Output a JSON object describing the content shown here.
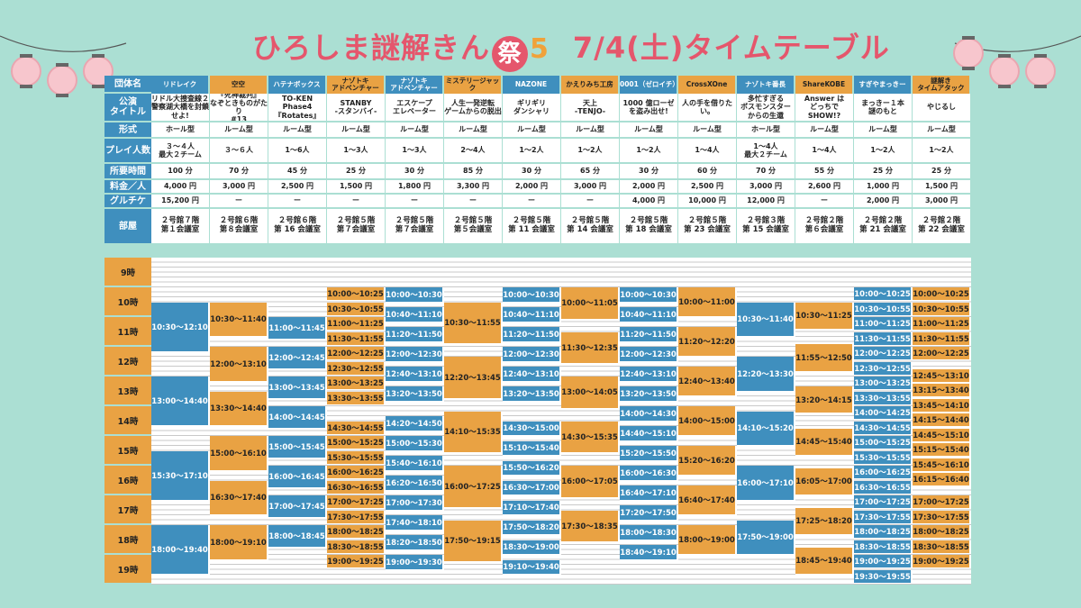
{
  "title": {
    "brand": "ひろしま謎解きん",
    "sakura": "祭",
    "num": "5",
    "date": "7/4(土)タイムテーブル"
  },
  "colors": {
    "blue": "#3f8fbe",
    "orange": "#e9a243",
    "bg": "#abdfd3",
    "title": "#e5566c"
  },
  "labels": [
    "団体名",
    "公演\nタイトル",
    "形式",
    "プレイ人数",
    "所要時間",
    "料金／人",
    "グルチケ",
    "部屋"
  ],
  "hours": [
    "9時",
    "10時",
    "11時",
    "12時",
    "13時",
    "14時",
    "15時",
    "16時",
    "17時",
    "18時",
    "19時"
  ],
  "columns": [
    {
      "org": "リドレイク",
      "title": "リドル大捜査線２\n警察湖大橋を封鎖せよ!",
      "format": "ホール型",
      "players": "３〜４人\n最大２チーム",
      "duration": "100 分",
      "price": "4,000 円",
      "group": "15,200 円",
      "room": "２号館７階\n第１会議室",
      "slots": [
        {
          "t": "10:30〜12:10",
          "c": "b"
        },
        {
          "t": "13:00〜14:40",
          "c": "b"
        },
        {
          "t": "15:30〜17:10",
          "c": "b"
        },
        {
          "t": "18:00〜19:40",
          "c": "b"
        }
      ]
    },
    {
      "org": "空空",
      "title": "『死神裁判』\nなぞときものがたり\n#13",
      "format": "ルーム型",
      "players": "３〜６人",
      "duration": "70 分",
      "price": "3,000 円",
      "group": "ー",
      "room": "２号館６階\n第８会議室",
      "slots": [
        {
          "t": "10:30〜11:40",
          "c": "o"
        },
        {
          "t": "12:00〜13:10",
          "c": "o"
        },
        {
          "t": "13:30〜14:40",
          "c": "o"
        },
        {
          "t": "15:00〜16:10",
          "c": "o"
        },
        {
          "t": "16:30〜17:40",
          "c": "o"
        },
        {
          "t": "18:00〜19:10",
          "c": "o"
        }
      ]
    },
    {
      "org": "ハテナボックス",
      "title": "TO-KEN Phase4\n『Rotates』",
      "format": "ルーム型",
      "players": "1〜6人",
      "duration": "45 分",
      "price": "2,500 円",
      "group": "ー",
      "room": "２号館６階\n第 16 会議室",
      "slots": [
        {
          "t": "11:00〜11:45",
          "c": "b"
        },
        {
          "t": "12:00〜12:45",
          "c": "b"
        },
        {
          "t": "13:00〜13:45",
          "c": "b"
        },
        {
          "t": "14:00〜14:45",
          "c": "b"
        },
        {
          "t": "15:00〜15:45",
          "c": "b"
        },
        {
          "t": "16:00〜16:45",
          "c": "b"
        },
        {
          "t": "17:00〜17:45",
          "c": "b"
        },
        {
          "t": "18:00〜18:45",
          "c": "b"
        }
      ]
    },
    {
      "org": "ナゾトキ\nアドベンチャー",
      "title": "STANBY\n-スタンバイ-",
      "format": "ルーム型",
      "players": "1〜3人",
      "duration": "25 分",
      "price": "1,500 円",
      "group": "ー",
      "room": "２号館５階\n第７会議室",
      "slots": [
        {
          "t": "10:00〜10:25",
          "c": "o"
        },
        {
          "t": "10:30〜10:55",
          "c": "o"
        },
        {
          "t": "11:00〜11:25",
          "c": "o"
        },
        {
          "t": "11:30〜11:55",
          "c": "o"
        },
        {
          "t": "12:00〜12:25",
          "c": "o"
        },
        {
          "t": "12:30〜12:55",
          "c": "o"
        },
        {
          "t": "13:00〜13:25",
          "c": "o"
        },
        {
          "t": "13:30〜13:55",
          "c": "o"
        },
        {
          "t": "14:30〜14:55",
          "c": "o"
        },
        {
          "t": "15:00〜15:25",
          "c": "o"
        },
        {
          "t": "15:30〜15:55",
          "c": "o"
        },
        {
          "t": "16:00〜16:25",
          "c": "o"
        },
        {
          "t": "16:30〜16:55",
          "c": "o"
        },
        {
          "t": "17:00〜17:25",
          "c": "o"
        },
        {
          "t": "17:30〜17:55",
          "c": "o"
        },
        {
          "t": "18:00〜18:25",
          "c": "o"
        },
        {
          "t": "18:30〜18:55",
          "c": "o"
        },
        {
          "t": "19:00〜19:25",
          "c": "o"
        }
      ]
    },
    {
      "org": "ナゾトキ\nアドベンチャー",
      "title": "エスケープ\nエレベーター",
      "format": "ルーム型",
      "players": "1〜3人",
      "duration": "30 分",
      "price": "1,800 円",
      "group": "ー",
      "room": "２号館５階\n第７会議室",
      "slots": [
        {
          "t": "10:00〜10:30",
          "c": "b"
        },
        {
          "t": "10:40〜11:10",
          "c": "b"
        },
        {
          "t": "11:20〜11:50",
          "c": "b"
        },
        {
          "t": "12:00〜12:30",
          "c": "b"
        },
        {
          "t": "12:40〜13:10",
          "c": "b"
        },
        {
          "t": "13:20〜13:50",
          "c": "b"
        },
        {
          "t": "14:20〜14:50",
          "c": "b"
        },
        {
          "t": "15:00〜15:30",
          "c": "b"
        },
        {
          "t": "15:40〜16:10",
          "c": "b"
        },
        {
          "t": "16:20〜16:50",
          "c": "b"
        },
        {
          "t": "17:00〜17:30",
          "c": "b"
        },
        {
          "t": "17:40〜18:10",
          "c": "b"
        },
        {
          "t": "18:20〜18:50",
          "c": "b"
        },
        {
          "t": "19:00〜19:30",
          "c": "b"
        }
      ]
    },
    {
      "org": "ミステリージャック",
      "title": "人生一発逆転\nゲームからの脱出",
      "format": "ルーム型",
      "players": "2〜4人",
      "duration": "85 分",
      "price": "3,300 円",
      "group": "ー",
      "room": "２号館５階\n第５会議室",
      "slots": [
        {
          "t": "10:30〜11:55",
          "c": "o"
        },
        {
          "t": "12:20〜13:45",
          "c": "o"
        },
        {
          "t": "14:10〜15:35",
          "c": "o"
        },
        {
          "t": "16:00〜17:25",
          "c": "o"
        },
        {
          "t": "17:50〜19:15",
          "c": "o"
        }
      ]
    },
    {
      "org": "NAZONE",
      "title": "ギリギリ\nダンシャリ",
      "format": "ルーム型",
      "players": "1〜2人",
      "duration": "30 分",
      "price": "2,000 円",
      "group": "ー",
      "room": "２号館５階\n第 11 会議室",
      "slots": [
        {
          "t": "10:00〜10:30",
          "c": "b"
        },
        {
          "t": "10:40〜11:10",
          "c": "b"
        },
        {
          "t": "11:20〜11:50",
          "c": "b"
        },
        {
          "t": "12:00〜12:30",
          "c": "b"
        },
        {
          "t": "12:40〜13:10",
          "c": "b"
        },
        {
          "t": "13:20〜13:50",
          "c": "b"
        },
        {
          "t": "14:30〜15:00",
          "c": "b"
        },
        {
          "t": "15:10〜15:40",
          "c": "b"
        },
        {
          "t": "15:50〜16:20",
          "c": "b"
        },
        {
          "t": "16:30〜17:00",
          "c": "b"
        },
        {
          "t": "17:10〜17:40",
          "c": "b"
        },
        {
          "t": "17:50〜18:20",
          "c": "b"
        },
        {
          "t": "18:30〜19:00",
          "c": "b"
        },
        {
          "t": "19:10〜19:40",
          "c": "b"
        }
      ]
    },
    {
      "org": "かえりみち工房",
      "title": "天上\n-TENJO-",
      "format": "ルーム型",
      "players": "1〜2人",
      "duration": "65 分",
      "price": "3,000 円",
      "group": "ー",
      "room": "２号館５階\n第 14 会議室",
      "slots": [
        {
          "t": "10:00〜11:05",
          "c": "o"
        },
        {
          "t": "11:30〜12:35",
          "c": "o"
        },
        {
          "t": "13:00〜14:05",
          "c": "o"
        },
        {
          "t": "14:30〜15:35",
          "c": "o"
        },
        {
          "t": "16:00〜17:05",
          "c": "o"
        },
        {
          "t": "17:30〜18:35",
          "c": "o"
        }
      ]
    },
    {
      "org": "0001（ゼロイチ）",
      "title": "1000 億ローゼ\nを盗み出せ!",
      "format": "ルーム型",
      "players": "1〜2人",
      "duration": "30 分",
      "price": "2,000 円",
      "group": "4,000 円",
      "room": "２号館５階\n第 18 会議室",
      "slots": [
        {
          "t": "10:00〜10:30",
          "c": "b"
        },
        {
          "t": "10:40〜11:10",
          "c": "b"
        },
        {
          "t": "11:20〜11:50",
          "c": "b"
        },
        {
          "t": "12:00〜12:30",
          "c": "b"
        },
        {
          "t": "12:40〜13:10",
          "c": "b"
        },
        {
          "t": "13:20〜13:50",
          "c": "b"
        },
        {
          "t": "14:00〜14:30",
          "c": "b"
        },
        {
          "t": "14:40〜15:10",
          "c": "b"
        },
        {
          "t": "15:20〜15:50",
          "c": "b"
        },
        {
          "t": "16:00〜16:30",
          "c": "b"
        },
        {
          "t": "16:40〜17:10",
          "c": "b"
        },
        {
          "t": "17:20〜17:50",
          "c": "b"
        },
        {
          "t": "18:00〜18:30",
          "c": "b"
        },
        {
          "t": "18:40〜19:10",
          "c": "b"
        }
      ]
    },
    {
      "org": "CrossXOne",
      "title": "人の手を借りたい。",
      "format": "ルーム型",
      "players": "1〜4人",
      "duration": "60 分",
      "price": "2,500 円",
      "group": "10,000 円",
      "room": "２号館５階\n第 23 会議室",
      "slots": [
        {
          "t": "10:00〜11:00",
          "c": "o"
        },
        {
          "t": "11:20〜12:20",
          "c": "o"
        },
        {
          "t": "12:40〜13:40",
          "c": "o"
        },
        {
          "t": "14:00〜15:00",
          "c": "o"
        },
        {
          "t": "15:20〜16:20",
          "c": "o"
        },
        {
          "t": "16:40〜17:40",
          "c": "o"
        },
        {
          "t": "18:00〜19:00",
          "c": "o"
        }
      ]
    },
    {
      "org": "ナゾトキ番長",
      "title": "多忙すぎる\nボスモンスター\nからの生還",
      "format": "ホール型",
      "players": "1〜4人\n最大２チーム",
      "duration": "70 分",
      "price": "3,000 円",
      "group": "12,000 円",
      "room": "２号館３階\n第 15 会議室",
      "slots": [
        {
          "t": "10:30〜11:40",
          "c": "b"
        },
        {
          "t": "12:20〜13:30",
          "c": "b"
        },
        {
          "t": "14:10〜15:20",
          "c": "b"
        },
        {
          "t": "16:00〜17:10",
          "c": "b"
        },
        {
          "t": "17:50〜19:00",
          "c": "b"
        }
      ]
    },
    {
      "org": "ShareKOBE",
      "title": "Answer は\nどっちで SHOW!?",
      "format": "ルーム型",
      "players": "1〜4人",
      "duration": "55 分",
      "price": "2,600 円",
      "group": "ー",
      "room": "２号館２階\n第６会議室",
      "slots": [
        {
          "t": "10:30〜11:25",
          "c": "o"
        },
        {
          "t": "11:55〜12:50",
          "c": "o"
        },
        {
          "t": "13:20〜14:15",
          "c": "o"
        },
        {
          "t": "14:45〜15:40",
          "c": "o"
        },
        {
          "t": "16:05〜17:00",
          "c": "o"
        },
        {
          "t": "17:25〜18:20",
          "c": "o"
        },
        {
          "t": "18:45〜19:40",
          "c": "o"
        }
      ]
    },
    {
      "org": "すぎやまっきー",
      "title": "まっきー１本\n謎のもと",
      "format": "ルーム型",
      "players": "1〜2人",
      "duration": "25 分",
      "price": "1,000 円",
      "group": "2,000 円",
      "room": "２号館２階\n第 21 会議室",
      "slots": [
        {
          "t": "10:00〜10:25",
          "c": "b"
        },
        {
          "t": "10:30〜10:55",
          "c": "b"
        },
        {
          "t": "11:00〜11:25",
          "c": "b"
        },
        {
          "t": "11:30〜11:55",
          "c": "b"
        },
        {
          "t": "12:00〜12:25",
          "c": "b"
        },
        {
          "t": "12:30〜12:55",
          "c": "b"
        },
        {
          "t": "13:00〜13:25",
          "c": "b"
        },
        {
          "t": "13:30〜13:55",
          "c": "b"
        },
        {
          "t": "14:00〜14:25",
          "c": "b"
        },
        {
          "t": "14:30〜14:55",
          "c": "b"
        },
        {
          "t": "15:00〜15:25",
          "c": "b"
        },
        {
          "t": "15:30〜15:55",
          "c": "b"
        },
        {
          "t": "16:00〜16:25",
          "c": "b"
        },
        {
          "t": "16:30〜16:55",
          "c": "b"
        },
        {
          "t": "17:00〜17:25",
          "c": "b"
        },
        {
          "t": "17:30〜17:55",
          "c": "b"
        },
        {
          "t": "18:00〜18:25",
          "c": "b"
        },
        {
          "t": "18:30〜18:55",
          "c": "b"
        },
        {
          "t": "19:00〜19:25",
          "c": "b"
        },
        {
          "t": "19:30〜19:55",
          "c": "b"
        }
      ]
    },
    {
      "org": "謎解き\nタイムアタック",
      "title": "やじるし",
      "format": "ルーム型",
      "players": "1〜2人",
      "duration": "25 分",
      "price": "1,500 円",
      "group": "3,000 円",
      "room": "２号館２階\n第 22 会議室",
      "slots": [
        {
          "t": "10:00〜10:25",
          "c": "o"
        },
        {
          "t": "10:30〜10:55",
          "c": "o"
        },
        {
          "t": "11:00〜11:25",
          "c": "o"
        },
        {
          "t": "11:30〜11:55",
          "c": "o"
        },
        {
          "t": "12:00〜12:25",
          "c": "o"
        },
        {
          "t": "12:45〜13:10",
          "c": "o"
        },
        {
          "t": "13:15〜13:40",
          "c": "o"
        },
        {
          "t": "13:45〜14:10",
          "c": "o"
        },
        {
          "t": "14:15〜14:40",
          "c": "o"
        },
        {
          "t": "14:45〜15:10",
          "c": "o"
        },
        {
          "t": "15:15〜15:40",
          "c": "o"
        },
        {
          "t": "15:45〜16:10",
          "c": "o"
        },
        {
          "t": "16:15〜16:40",
          "c": "o"
        },
        {
          "t": "17:00〜17:25",
          "c": "o"
        },
        {
          "t": "17:30〜17:55",
          "c": "o"
        },
        {
          "t": "18:00〜18:25",
          "c": "o"
        },
        {
          "t": "18:30〜18:55",
          "c": "o"
        },
        {
          "t": "19:00〜19:25",
          "c": "o"
        }
      ]
    }
  ]
}
